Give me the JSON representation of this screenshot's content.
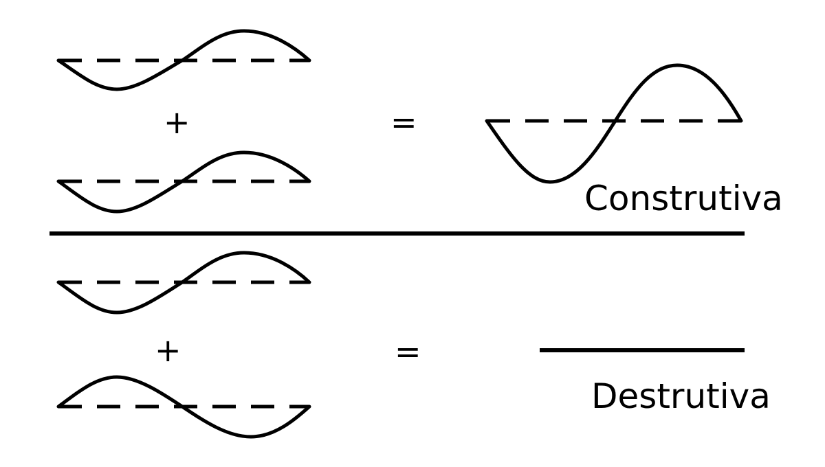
{
  "symbols": {
    "plus": "+",
    "equals": "="
  },
  "labels": {
    "constructive": "Construtiva",
    "destructive": "Destrutiva"
  }
}
